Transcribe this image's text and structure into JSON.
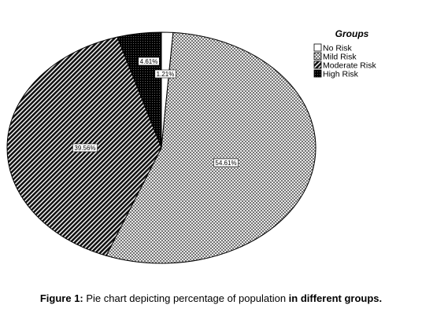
{
  "chart_data": {
    "type": "pie",
    "legend_title": "Groups",
    "legend_placement": "top-right",
    "slices": [
      {
        "name": "No Risk",
        "value": 1.21,
        "label": "1.21%",
        "pattern": "plain"
      },
      {
        "name": "Mild Risk",
        "value": 54.61,
        "label": "54.61%",
        "pattern": "crosshatch"
      },
      {
        "name": "Moderate Risk",
        "value": 39.56,
        "label": "39.56%",
        "pattern": "diagonal"
      },
      {
        "name": "High Risk",
        "value": 4.61,
        "label": "4.61%",
        "pattern": "dense"
      }
    ]
  },
  "caption": {
    "prefix": "Figure 1:",
    "text": " Pie chart depicting percentage of population ",
    "emphasis": "in different groups."
  }
}
